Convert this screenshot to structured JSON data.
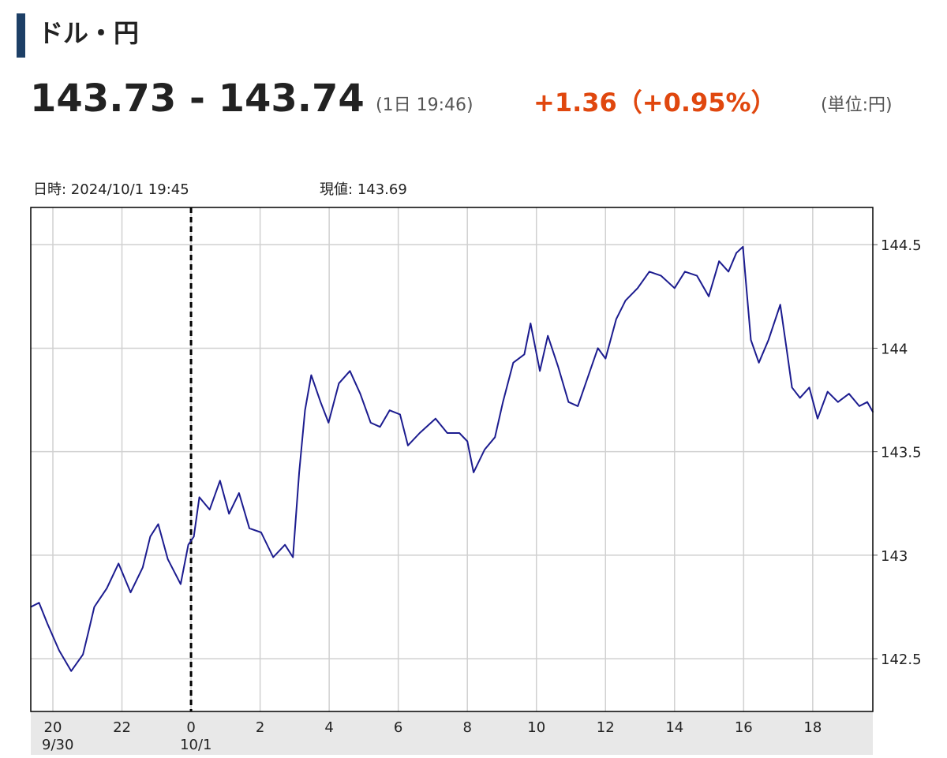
{
  "header": {
    "title": "ドル・円",
    "price": "143.73 - 143.74",
    "time": "(1日 19:46)",
    "change": "+1.36（+0.95%）",
    "unit": "(単位:円)"
  },
  "info": {
    "datetime": "日時: 2024/10/1  19:45",
    "current": "現値: 143.69"
  },
  "chart_data": {
    "type": "line",
    "x": [
      19.36,
      19.6,
      19.84,
      20.18,
      20.53,
      20.87,
      21.03,
      21.2,
      21.56,
      21.9,
      22.25,
      22.6,
      22.82,
      23.05,
      23.33,
      23.7,
      23.92,
      24.08,
      24.24,
      24.54,
      24.84,
      25.1,
      25.39,
      25.69,
      26.03,
      26.38,
      26.72,
      26.95,
      27.13,
      27.3,
      27.48,
      27.75,
      27.98,
      28.28,
      28.6,
      28.9,
      29.2,
      29.47,
      29.75,
      30.05,
      30.28,
      30.62,
      31.08,
      31.42,
      31.77,
      32.0,
      32.18,
      32.5,
      32.8,
      33.03,
      33.33,
      33.65,
      33.83,
      34.1,
      34.33,
      34.63,
      34.93,
      35.2,
      35.55,
      35.78,
      36.0,
      36.31,
      36.58,
      36.93,
      37.27,
      37.61,
      38.0,
      38.3,
      38.65,
      38.99,
      39.29,
      39.56,
      39.79,
      39.98,
      40.07,
      40.21,
      40.44,
      40.72,
      41.06,
      41.24,
      41.4,
      41.63,
      41.9,
      42.14,
      42.43,
      42.73,
      43.05,
      43.35,
      43.58,
      43.75
    ],
    "series": [
      {
        "name": "ドル・円",
        "color": "#1c1c8f",
        "values": [
          142.75,
          142.77,
          142.67,
          142.54,
          142.44,
          142.52,
          142.63,
          142.75,
          142.84,
          142.96,
          142.82,
          142.94,
          143.09,
          143.15,
          142.98,
          142.86,
          143.05,
          143.09,
          143.28,
          143.22,
          143.36,
          143.2,
          143.3,
          143.13,
          143.11,
          142.99,
          143.05,
          142.99,
          143.4,
          143.7,
          143.87,
          143.74,
          143.64,
          143.83,
          143.89,
          143.78,
          143.64,
          143.62,
          143.7,
          143.68,
          143.53,
          143.59,
          143.66,
          143.59,
          143.59,
          143.55,
          143.4,
          143.51,
          143.57,
          143.74,
          143.93,
          143.97,
          144.12,
          143.89,
          144.06,
          143.91,
          143.74,
          143.72,
          143.89,
          144.0,
          143.95,
          144.14,
          144.23,
          144.29,
          144.37,
          144.35,
          144.29,
          144.37,
          144.35,
          144.25,
          144.42,
          144.37,
          144.46,
          144.49,
          144.31,
          144.04,
          143.93,
          144.04,
          144.21,
          144.0,
          143.81,
          143.76,
          143.81,
          143.66,
          143.79,
          143.74,
          143.78,
          143.72,
          143.74,
          143.69
        ]
      }
    ],
    "xlim": [
      19.36,
      43.74
    ],
    "xticks": [
      20,
      22,
      {
        "value": 24,
        "label": "0"
      },
      {
        "value": 26,
        "label": "2"
      },
      {
        "value": 28,
        "label": "4"
      },
      {
        "value": 30,
        "label": "6"
      },
      {
        "value": 32,
        "label": "8"
      },
      {
        "value": 34,
        "label": "10"
      },
      {
        "value": 36,
        "label": "12"
      },
      {
        "value": 38,
        "label": "14"
      },
      {
        "value": 40,
        "label": "16"
      },
      {
        "value": 42,
        "label": "18"
      }
    ],
    "date_labels": [
      {
        "value": 20,
        "label": "9/30"
      },
      {
        "value": 24,
        "label": "10/1"
      }
    ],
    "ylim": [
      142.245,
      144.68
    ],
    "yticks": [
      142.5,
      143,
      143.5,
      144,
      144.5
    ],
    "grid": true
  }
}
